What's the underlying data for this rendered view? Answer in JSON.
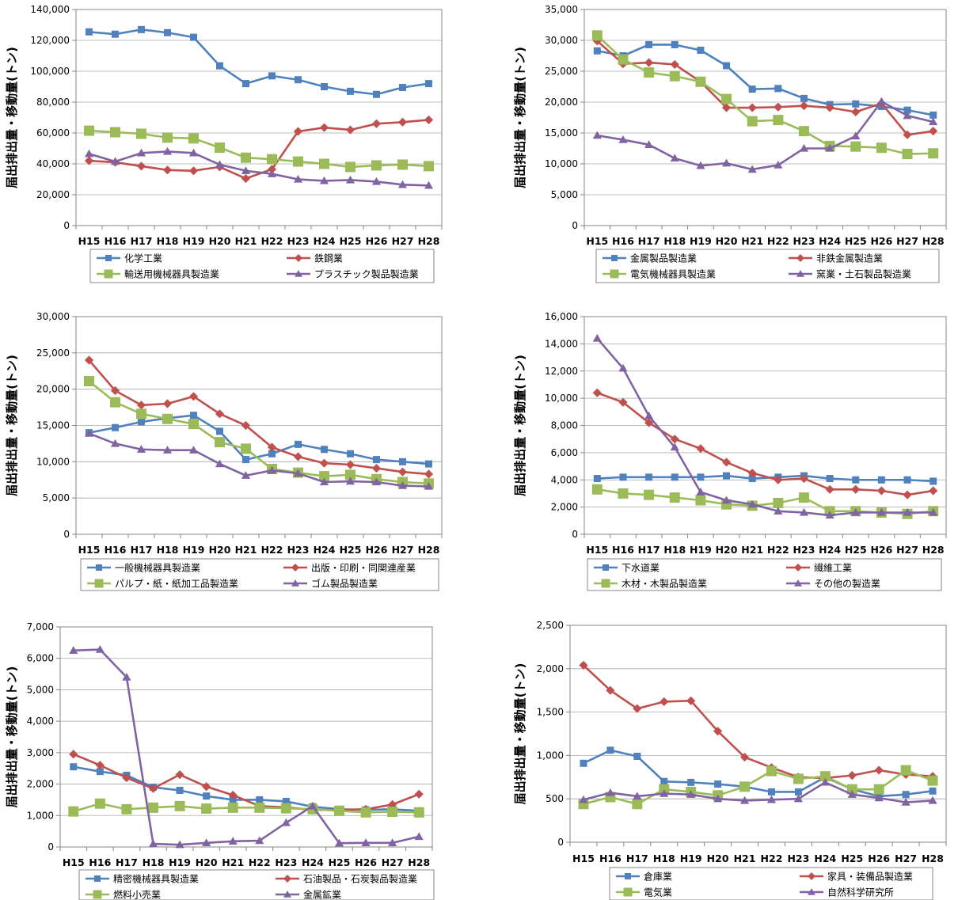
{
  "colors": {
    "blue": "#4F81BD",
    "red": "#C0504D",
    "green": "#9BBB59",
    "purple": "#8064A2",
    "grid": "#A6A6A6",
    "axis": "#868686"
  },
  "chart_data": [
    {
      "type": "line",
      "ylabel": "届出排出量・移動量(トン)",
      "ylim": [
        0,
        140000
      ],
      "yticks": [
        "0",
        "20,000",
        "40,000",
        "60,000",
        "80,000",
        "100,000",
        "120,000",
        "140,000"
      ],
      "categories": [
        "H15",
        "H16",
        "H17",
        "H18",
        "H19",
        "H20",
        "H21",
        "H22",
        "H23",
        "H24",
        "H25",
        "H26",
        "H27",
        "H28"
      ],
      "legend_position": "bottom",
      "grid": true,
      "series": [
        {
          "name": "化学工業",
          "color": "#4F81BD",
          "marker": "square",
          "values": [
            125500,
            124000,
            127000,
            125000,
            122000,
            103500,
            92000,
            97000,
            94500,
            90000,
            87000,
            85000,
            89500,
            92000
          ]
        },
        {
          "name": "鉄鋼業",
          "color": "#C0504D",
          "marker": "diamond",
          "values": [
            42000,
            41000,
            38500,
            36000,
            35500,
            38000,
            30500,
            36500,
            61000,
            63500,
            62000,
            66000,
            67000,
            68500
          ]
        },
        {
          "name": "輸送用機械器具製造業",
          "color": "#9BBB59",
          "marker": "square",
          "values": [
            61500,
            60500,
            59500,
            57000,
            56500,
            50500,
            44000,
            43000,
            41500,
            40000,
            38000,
            39000,
            39500,
            38500
          ]
        },
        {
          "name": "プラスチック製品製造業",
          "color": "#8064A2",
          "marker": "triangle",
          "values": [
            46500,
            41500,
            47000,
            48000,
            47000,
            39500,
            35500,
            33500,
            30000,
            29000,
            29500,
            28500,
            26500,
            26000
          ]
        }
      ]
    },
    {
      "type": "line",
      "ylabel": "届出排出量・移動量(トン)",
      "ylim": [
        0,
        35000
      ],
      "yticks": [
        "0",
        "5,000",
        "10,000",
        "15,000",
        "20,000",
        "25,000",
        "30,000",
        "35,000"
      ],
      "categories": [
        "H15",
        "H16",
        "H17",
        "H18",
        "H19",
        "H20",
        "H21",
        "H22",
        "H23",
        "H24",
        "H25",
        "H26",
        "H27",
        "H28"
      ],
      "legend_position": "bottom",
      "grid": true,
      "series": [
        {
          "name": "金属製品製造業",
          "color": "#4F81BD",
          "marker": "square",
          "values": [
            28300,
            27500,
            29300,
            29300,
            28400,
            25900,
            22100,
            22200,
            20600,
            19600,
            19700,
            19300,
            18700,
            17900
          ]
        },
        {
          "name": "非鉄金属製造業",
          "color": "#C0504D",
          "marker": "diamond",
          "values": [
            29900,
            26200,
            26400,
            26100,
            23300,
            19100,
            19100,
            19200,
            19400,
            19100,
            18400,
            19800,
            14700,
            15300
          ]
        },
        {
          "name": "電気機械器具製造業",
          "color": "#9BBB59",
          "marker": "square",
          "values": [
            30800,
            26900,
            24800,
            24200,
            23300,
            20500,
            16900,
            17100,
            15300,
            12900,
            12800,
            12600,
            11600,
            11700
          ]
        },
        {
          "name": "窯業・土石製品製造業",
          "color": "#8064A2",
          "marker": "triangle",
          "values": [
            14600,
            13900,
            13100,
            10900,
            9700,
            10100,
            9100,
            9800,
            12500,
            12500,
            14500,
            20100,
            17800,
            16800
          ]
        }
      ]
    },
    {
      "type": "line",
      "ylabel": "届出排出量・移動量(トン)",
      "ylim": [
        0,
        30000
      ],
      "yticks": [
        "0",
        "5,000",
        "10,000",
        "15,000",
        "20,000",
        "25,000",
        "30,000"
      ],
      "categories": [
        "H15",
        "H16",
        "H17",
        "H18",
        "H19",
        "H20",
        "H21",
        "H22",
        "H23",
        "H24",
        "H25",
        "H26",
        "H27",
        "H28"
      ],
      "legend_position": "bottom",
      "grid": true,
      "series": [
        {
          "name": "一般機械器具製造業",
          "color": "#4F81BD",
          "marker": "square",
          "values": [
            14000,
            14700,
            15500,
            16000,
            16400,
            14200,
            10300,
            11100,
            12400,
            11700,
            11100,
            10300,
            10000,
            9700
          ]
        },
        {
          "name": "出版・印刷・同関連産業",
          "color": "#C0504D",
          "marker": "diamond",
          "values": [
            24000,
            19800,
            17800,
            18000,
            19000,
            16600,
            15000,
            12000,
            10700,
            9800,
            9600,
            9100,
            8600,
            8300
          ]
        },
        {
          "name": "パルプ・紙・紙加工品製造業",
          "color": "#9BBB59",
          "marker": "square",
          "values": [
            21100,
            18200,
            16600,
            15900,
            15200,
            12700,
            11800,
            9000,
            8500,
            8000,
            8200,
            7600,
            7200,
            7000
          ]
        },
        {
          "name": "ゴム製品製造業",
          "color": "#8064A2",
          "marker": "triangle",
          "values": [
            13900,
            12500,
            11700,
            11600,
            11600,
            9700,
            8100,
            8800,
            8400,
            7200,
            7300,
            7200,
            6700,
            6600
          ]
        }
      ]
    },
    {
      "type": "line",
      "ylabel": "届出排出量・移動量(トン)",
      "ylim": [
        0,
        16000
      ],
      "yticks": [
        "0",
        "2,000",
        "4,000",
        "6,000",
        "8,000",
        "10,000",
        "12,000",
        "14,000",
        "16,000"
      ],
      "categories": [
        "H15",
        "H16",
        "H17",
        "H18",
        "H19",
        "H20",
        "H21",
        "H22",
        "H23",
        "H24",
        "H25",
        "H26",
        "H27",
        "H28"
      ],
      "legend_position": "bottom",
      "grid": true,
      "series": [
        {
          "name": "下水道業",
          "color": "#4F81BD",
          "marker": "square",
          "values": [
            4100,
            4200,
            4200,
            4200,
            4200,
            4300,
            4100,
            4200,
            4300,
            4100,
            4000,
            4000,
            4000,
            3900
          ]
        },
        {
          "name": "繊維工業",
          "color": "#C0504D",
          "marker": "diamond",
          "values": [
            10400,
            9700,
            8200,
            7000,
            6300,
            5300,
            4500,
            4000,
            4100,
            3300,
            3300,
            3200,
            2900,
            3200
          ]
        },
        {
          "name": "木材・木製品製造業",
          "color": "#9BBB59",
          "marker": "square",
          "values": [
            3300,
            3000,
            2900,
            2700,
            2500,
            2200,
            2100,
            2300,
            2700,
            1700,
            1700,
            1600,
            1500,
            1700
          ]
        },
        {
          "name": "その他の製造業",
          "color": "#8064A2",
          "marker": "triangle",
          "values": [
            14400,
            12200,
            8700,
            6400,
            3100,
            2500,
            2200,
            1700,
            1600,
            1400,
            1600,
            1600,
            1600,
            1600
          ]
        }
      ]
    },
    {
      "type": "line",
      "ylabel": "届出排出量・移動量(トン)",
      "ylim": [
        0,
        7000
      ],
      "yticks": [
        "0",
        "1,000",
        "2,000",
        "3,000",
        "4,000",
        "5,000",
        "6,000",
        "7,000"
      ],
      "categories": [
        "H15",
        "H16",
        "H17",
        "H18",
        "H19",
        "H20",
        "H21",
        "H22",
        "H23",
        "H24",
        "H25",
        "H26",
        "H27",
        "H28"
      ],
      "legend_position": "bottom",
      "grid": true,
      "series": [
        {
          "name": "精密機械器具製造業",
          "color": "#4F81BD",
          "marker": "square",
          "values": [
            2550,
            2400,
            2280,
            1900,
            1800,
            1620,
            1500,
            1500,
            1450,
            1280,
            1200,
            1180,
            1200,
            1150
          ]
        },
        {
          "name": "石油製品・石炭製品製造業",
          "color": "#C0504D",
          "marker": "diamond",
          "values": [
            2950,
            2600,
            2200,
            1860,
            2300,
            1920,
            1650,
            1300,
            1260,
            1180,
            1180,
            1200,
            1350,
            1680
          ]
        },
        {
          "name": "燃料小売業",
          "color": "#9BBB59",
          "marker": "square",
          "values": [
            1130,
            1380,
            1200,
            1250,
            1300,
            1220,
            1250,
            1250,
            1230,
            1200,
            1150,
            1100,
            1120,
            1100
          ]
        },
        {
          "name": "金属鉱業",
          "color": "#8064A2",
          "marker": "triangle",
          "values": [
            6250,
            6280,
            5400,
            100,
            70,
            130,
            180,
            200,
            770,
            1300,
            120,
            130,
            130,
            330
          ]
        }
      ]
    },
    {
      "type": "line",
      "ylabel": "届出排出量・移動量(トン)",
      "ylim": [
        0,
        2500
      ],
      "yticks": [
        "0",
        "500",
        "1,000",
        "1,500",
        "2,000",
        "2,500"
      ],
      "categories": [
        "H15",
        "H16",
        "H17",
        "H18",
        "H19",
        "H20",
        "H21",
        "H22",
        "H23",
        "H24",
        "H25",
        "H26",
        "H27",
        "H28"
      ],
      "legend_position": "bottom",
      "grid": true,
      "series": [
        {
          "name": "倉庫業",
          "color": "#4F81BD",
          "marker": "square",
          "values": [
            910,
            1060,
            990,
            700,
            690,
            670,
            640,
            580,
            580,
            750,
            610,
            530,
            550,
            590
          ]
        },
        {
          "name": "家具・装備品製造業",
          "color": "#C0504D",
          "marker": "diamond",
          "values": [
            2040,
            1750,
            1540,
            1620,
            1630,
            1280,
            980,
            860,
            750,
            740,
            770,
            830,
            780,
            760
          ]
        },
        {
          "name": "電気業",
          "color": "#9BBB59",
          "marker": "square",
          "values": [
            440,
            520,
            440,
            610,
            580,
            540,
            640,
            820,
            730,
            760,
            610,
            610,
            830,
            710
          ]
        },
        {
          "name": "自然科学研究所",
          "color": "#8064A2",
          "marker": "triangle",
          "values": [
            490,
            570,
            530,
            560,
            550,
            500,
            480,
            490,
            500,
            690,
            550,
            510,
            460,
            480
          ]
        }
      ]
    }
  ]
}
